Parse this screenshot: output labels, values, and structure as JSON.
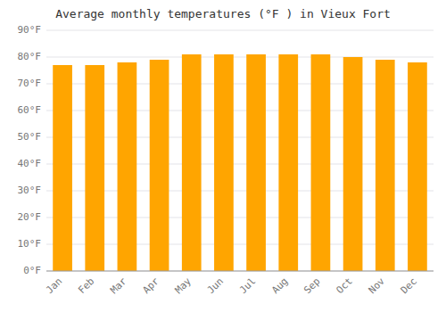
{
  "chart_data": {
    "type": "bar",
    "title": "Average monthly temperatures (°F ) in Vieux Fort",
    "categories": [
      "Jan",
      "Feb",
      "Mar",
      "Apr",
      "May",
      "Jun",
      "Jul",
      "Aug",
      "Sep",
      "Oct",
      "Nov",
      "Dec"
    ],
    "values": [
      77,
      77,
      78,
      79,
      81,
      81,
      81,
      81,
      81,
      80,
      79,
      78
    ],
    "color": "#FFA500",
    "ylim": [
      0,
      90
    ],
    "yticks": [
      {
        "value": 0,
        "label": "0°F"
      },
      {
        "value": 10,
        "label": "10°F"
      },
      {
        "value": 20,
        "label": "20°F"
      },
      {
        "value": 30,
        "label": "30°F"
      },
      {
        "value": 40,
        "label": "40°F"
      },
      {
        "value": 50,
        "label": "50°F"
      },
      {
        "value": 60,
        "label": "60°F"
      },
      {
        "value": 70,
        "label": "70°F"
      },
      {
        "value": 80,
        "label": "80°F"
      },
      {
        "value": 90,
        "label": "90°F"
      }
    ],
    "grid": true
  }
}
